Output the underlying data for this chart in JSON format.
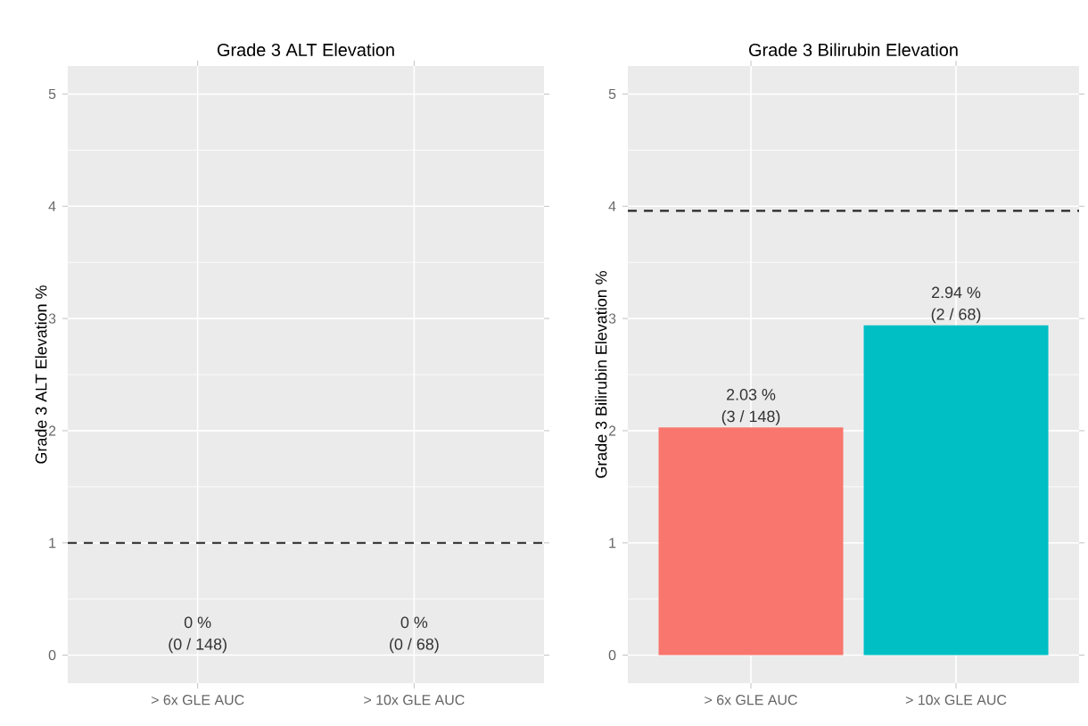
{
  "chart_data": [
    {
      "type": "bar",
      "title": "Grade 3 ALT Elevation",
      "ylabel": "Grade 3 ALT Elevation %",
      "categories": [
        "> 6x GLE AUC",
        "> 10x GLE AUC"
      ],
      "values": [
        0,
        0
      ],
      "value_labels": [
        "0 %",
        "0 %"
      ],
      "annotations": [
        {
          "text": "(0 / 148)",
          "x": "> 6x GLE AUC",
          "y": 0
        },
        {
          "text": "(0 / 68)",
          "x": "> 10x GLE AUC",
          "y": 0
        }
      ],
      "ylim": [
        -0.25,
        5.25
      ],
      "yticks": [
        0,
        1,
        2,
        3,
        4,
        5
      ],
      "grid": true,
      "ref_lines": [
        {
          "axis": "y",
          "value": 1,
          "line_style": "dashed"
        }
      ]
    },
    {
      "type": "bar",
      "title": "Grade 3 Bilirubin Elevation",
      "ylabel": "Grade 3 Bilirubin Elevation %",
      "categories": [
        "> 6x GLE AUC",
        "> 10x GLE AUC"
      ],
      "values": [
        2.03,
        2.94
      ],
      "colors": [
        "#f8766d",
        "#00bfc4"
      ],
      "value_labels": [
        "2.03 %",
        "2.94 %"
      ],
      "annotations": [
        {
          "text": "(3 / 148)",
          "x": "> 6x GLE AUC",
          "y": 2.03
        },
        {
          "text": "(2 / 68)",
          "x": "> 10x GLE AUC",
          "y": 2.94
        }
      ],
      "ylim": [
        -0.25,
        5.25
      ],
      "yticks": [
        0,
        1,
        2,
        3,
        4,
        5
      ],
      "grid": true,
      "ref_lines": [
        {
          "axis": "y",
          "value": 3.96,
          "line_style": "dashed"
        }
      ]
    }
  ]
}
